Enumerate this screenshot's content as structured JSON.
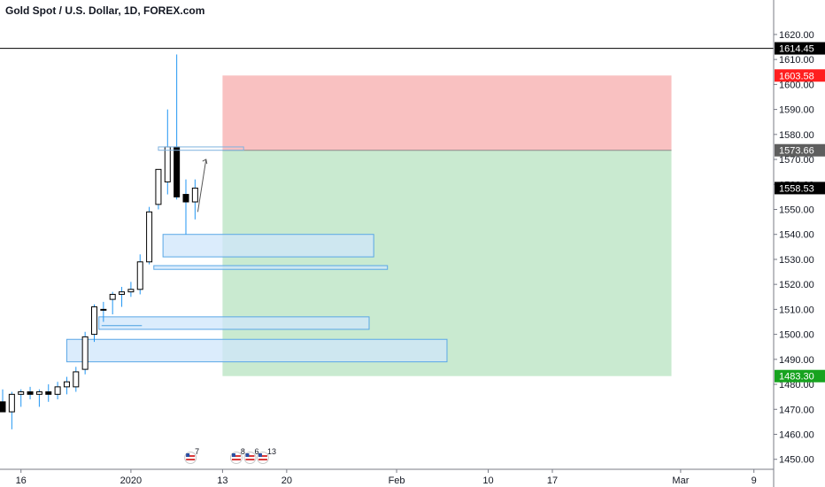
{
  "header": {
    "title": "Gold Spot / U.S. Dollar, 1D, FOREX.com"
  },
  "colors": {
    "up_fill": "#ffffff",
    "down_fill": "#000000",
    "wick": "#2196f3",
    "zone_fill": "#cfe6fb",
    "zone_stroke": "#5aa7e6",
    "stop_fill": "#f9c1c1",
    "target_fill": "#c9ead0",
    "stop_badge": "#ff1f1f",
    "target_badge": "#17a31f",
    "entry_badge": "#5e5e5e",
    "last_badge": "#000000",
    "hline": "#000000"
  },
  "chart_data": {
    "type": "candlestick",
    "symbol": "Gold Spot / U.S. Dollar",
    "interval": "1D",
    "exchange": "FOREX.com",
    "ylim": [
      1446,
      1626
    ],
    "y_ticks": [
      1450,
      1460,
      1470,
      1480,
      1490,
      1500,
      1510,
      1520,
      1530,
      1540,
      1550,
      1560,
      1570,
      1580,
      1590,
      1600,
      1610,
      1620
    ],
    "y_tick_labels": [
      "1450.00",
      "1460.00",
      "1470.00",
      "1480.00",
      "1490.00",
      "1500.00",
      "1510.00",
      "1520.00",
      "1530.00",
      "1540.00",
      "1550.00",
      "1560.00",
      "1570.00",
      "1580.00",
      "1590.00",
      "1600.00",
      "1610.00",
      "1620.00"
    ],
    "x_ticks": [
      {
        "bar": 2,
        "label": "16"
      },
      {
        "bar": 14,
        "label": "2020"
      },
      {
        "bar": 24,
        "label": "13"
      },
      {
        "bar": 31,
        "label": "20"
      },
      {
        "bar": 43,
        "label": "Feb"
      },
      {
        "bar": 53,
        "label": "10"
      },
      {
        "bar": 60,
        "label": "17"
      },
      {
        "bar": 74,
        "label": "Mar"
      },
      {
        "bar": 82,
        "label": "9"
      }
    ],
    "candles": [
      {
        "bar": 0,
        "open": 1473,
        "high": 1478,
        "low": 1470,
        "close": 1469
      },
      {
        "bar": 1,
        "open": 1469,
        "high": 1477,
        "low": 1462,
        "close": 1476
      },
      {
        "bar": 2,
        "open": 1476,
        "high": 1478,
        "low": 1471,
        "close": 1477
      },
      {
        "bar": 3,
        "open": 1477,
        "high": 1479,
        "low": 1474,
        "close": 1476
      },
      {
        "bar": 4,
        "open": 1476,
        "high": 1478,
        "low": 1471,
        "close": 1477
      },
      {
        "bar": 5,
        "open": 1477,
        "high": 1480,
        "low": 1473,
        "close": 1476
      },
      {
        "bar": 6,
        "open": 1476,
        "high": 1481,
        "low": 1474,
        "close": 1479
      },
      {
        "bar": 7,
        "open": 1479,
        "high": 1483,
        "low": 1476,
        "close": 1481
      },
      {
        "bar": 8,
        "open": 1479,
        "high": 1487,
        "low": 1477,
        "close": 1485
      },
      {
        "bar": 9,
        "open": 1486,
        "high": 1501,
        "low": 1484,
        "close": 1499
      },
      {
        "bar": 10,
        "open": 1500,
        "high": 1512,
        "low": 1497,
        "close": 1511
      },
      {
        "bar": 11,
        "open": 1510,
        "high": 1513,
        "low": 1505,
        "close": 1510
      },
      {
        "bar": 12,
        "open": 1514,
        "high": 1517,
        "low": 1508,
        "close": 1516
      },
      {
        "bar": 13,
        "open": 1516,
        "high": 1519,
        "low": 1511,
        "close": 1517
      },
      {
        "bar": 14,
        "open": 1517,
        "high": 1521,
        "low": 1515,
        "close": 1518
      },
      {
        "bar": 15,
        "open": 1518,
        "high": 1532,
        "low": 1516,
        "close": 1529
      },
      {
        "bar": 16,
        "open": 1529,
        "high": 1551,
        "low": 1528,
        "close": 1549
      },
      {
        "bar": 17,
        "open": 1552,
        "high": 1566,
        "low": 1550,
        "close": 1566
      },
      {
        "bar": 18,
        "open": 1561,
        "high": 1590,
        "low": 1556,
        "close": 1575
      },
      {
        "bar": 19,
        "open": 1575,
        "high": 1612,
        "low": 1554,
        "close": 1555
      },
      {
        "bar": 20,
        "open": 1556,
        "high": 1562,
        "low": 1540,
        "close": 1553
      },
      {
        "bar": 21,
        "open": 1553,
        "high": 1562,
        "low": 1546,
        "close": 1558.53
      }
    ],
    "zones": [
      {
        "bar_start": 17.5,
        "bar_end": 40.5,
        "price_top": 1540,
        "price_bottom": 1531
      },
      {
        "bar_start": 16.5,
        "bar_end": 42,
        "price_top": 1527.5,
        "price_bottom": 1526
      },
      {
        "bar_start": 10.5,
        "bar_end": 40,
        "price_top": 1507,
        "price_bottom": 1502
      },
      {
        "bar_start": 7,
        "bar_end": 48.5,
        "price_top": 1498,
        "price_bottom": 1489
      }
    ],
    "position": {
      "type": "short",
      "bar_start": 24,
      "bar_end": 73,
      "entry": 1573.66,
      "stop": 1603.58,
      "target": 1483.3
    },
    "horizontal_line": 1614.45,
    "last_price": 1558.53,
    "price_badges": [
      {
        "price": 1614.45,
        "label": "1614.45",
        "style": "last"
      },
      {
        "price": 1603.58,
        "label": "1603.58",
        "style": "stop"
      },
      {
        "price": 1573.66,
        "label": "1573.66",
        "style": "entry"
      },
      {
        "price": 1558.53,
        "label": "1558.53",
        "style": "last"
      },
      {
        "price": 1483.3,
        "label": "1483.30",
        "style": "target"
      }
    ],
    "event_flags": [
      {
        "bar": 20.5,
        "count": "7"
      },
      {
        "bar": 25.5,
        "count": "8"
      },
      {
        "bar": 27,
        "count": "6"
      },
      {
        "bar": 28.4,
        "count": "13"
      }
    ]
  }
}
